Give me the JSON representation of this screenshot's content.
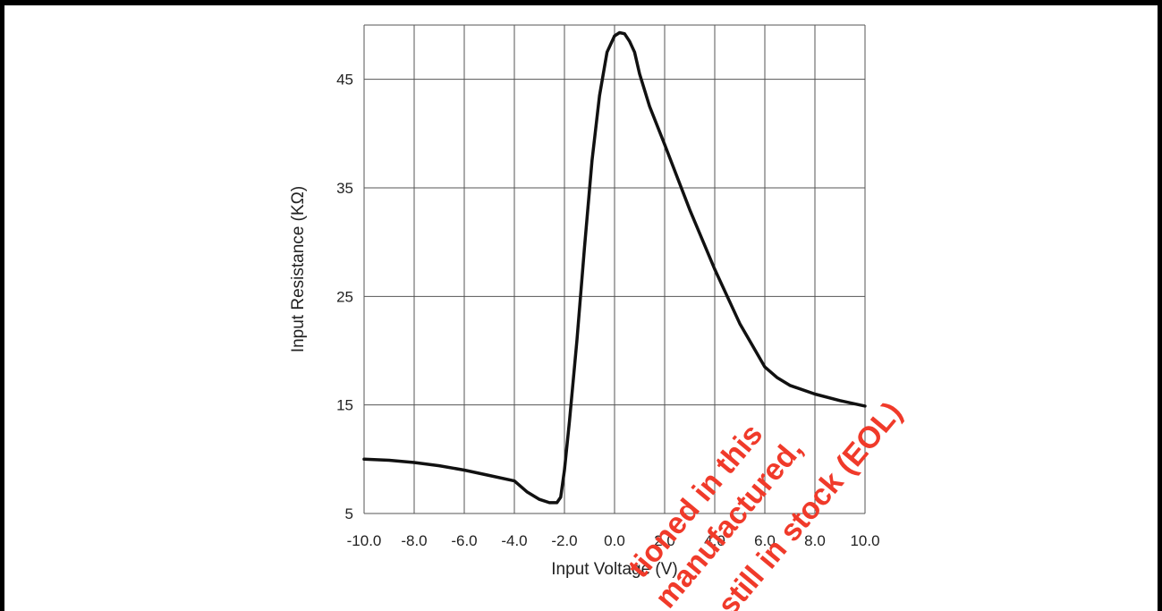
{
  "chart_data": {
    "type": "line",
    "title": "",
    "xlabel": "Input Voltage (V)",
    "ylabel": "Input Resistance (KΩ)",
    "xlim": [
      -10,
      10
    ],
    "ylim": [
      5,
      50
    ],
    "x_ticks": [
      -10,
      -8,
      -6,
      -4,
      -2,
      0,
      2,
      4,
      6,
      8,
      10
    ],
    "x_tick_labels": [
      "-10.0",
      "-8.0",
      "-6.0",
      "-4.0",
      "-2.0",
      "0.0",
      "2.0",
      "4.0",
      "6.0",
      "8.0",
      "10.0"
    ],
    "y_ticks": [
      5,
      15,
      25,
      35,
      45
    ],
    "y_tick_labels": [
      "5",
      "15",
      "25",
      "35",
      "45"
    ],
    "grid": true,
    "series": [
      {
        "x": [
          -10,
          -9,
          -8,
          -7,
          -6,
          -5,
          -4,
          -3.5,
          -3,
          -2.6,
          -2.3,
          -2.15,
          -2.0,
          -1.8,
          -1.5,
          -1.2,
          -0.9,
          -0.6,
          -0.3,
          0.0,
          0.2,
          0.4,
          0.6,
          0.8,
          1.0,
          1.4,
          2.0,
          3.0,
          4.0,
          5.0,
          6.0,
          6.5,
          7.0,
          8.0,
          9.0,
          10.0
        ],
        "y": [
          10.0,
          9.9,
          9.7,
          9.4,
          9.0,
          8.5,
          8.0,
          7.0,
          6.3,
          6.0,
          6.0,
          6.5,
          9.0,
          13.5,
          21.0,
          29.5,
          37.5,
          43.5,
          47.5,
          49.0,
          49.3,
          49.2,
          48.5,
          47.5,
          45.5,
          42.5,
          39.0,
          33.0,
          27.5,
          22.5,
          18.5,
          17.5,
          16.8,
          16.0,
          15.4,
          14.9
        ]
      }
    ],
    "color": "#111111"
  },
  "watermark": {
    "lines": [
      "tioned in this",
      "manufactured,",
      "still in stock (EOL)"
    ],
    "color": "#f03a2a"
  }
}
